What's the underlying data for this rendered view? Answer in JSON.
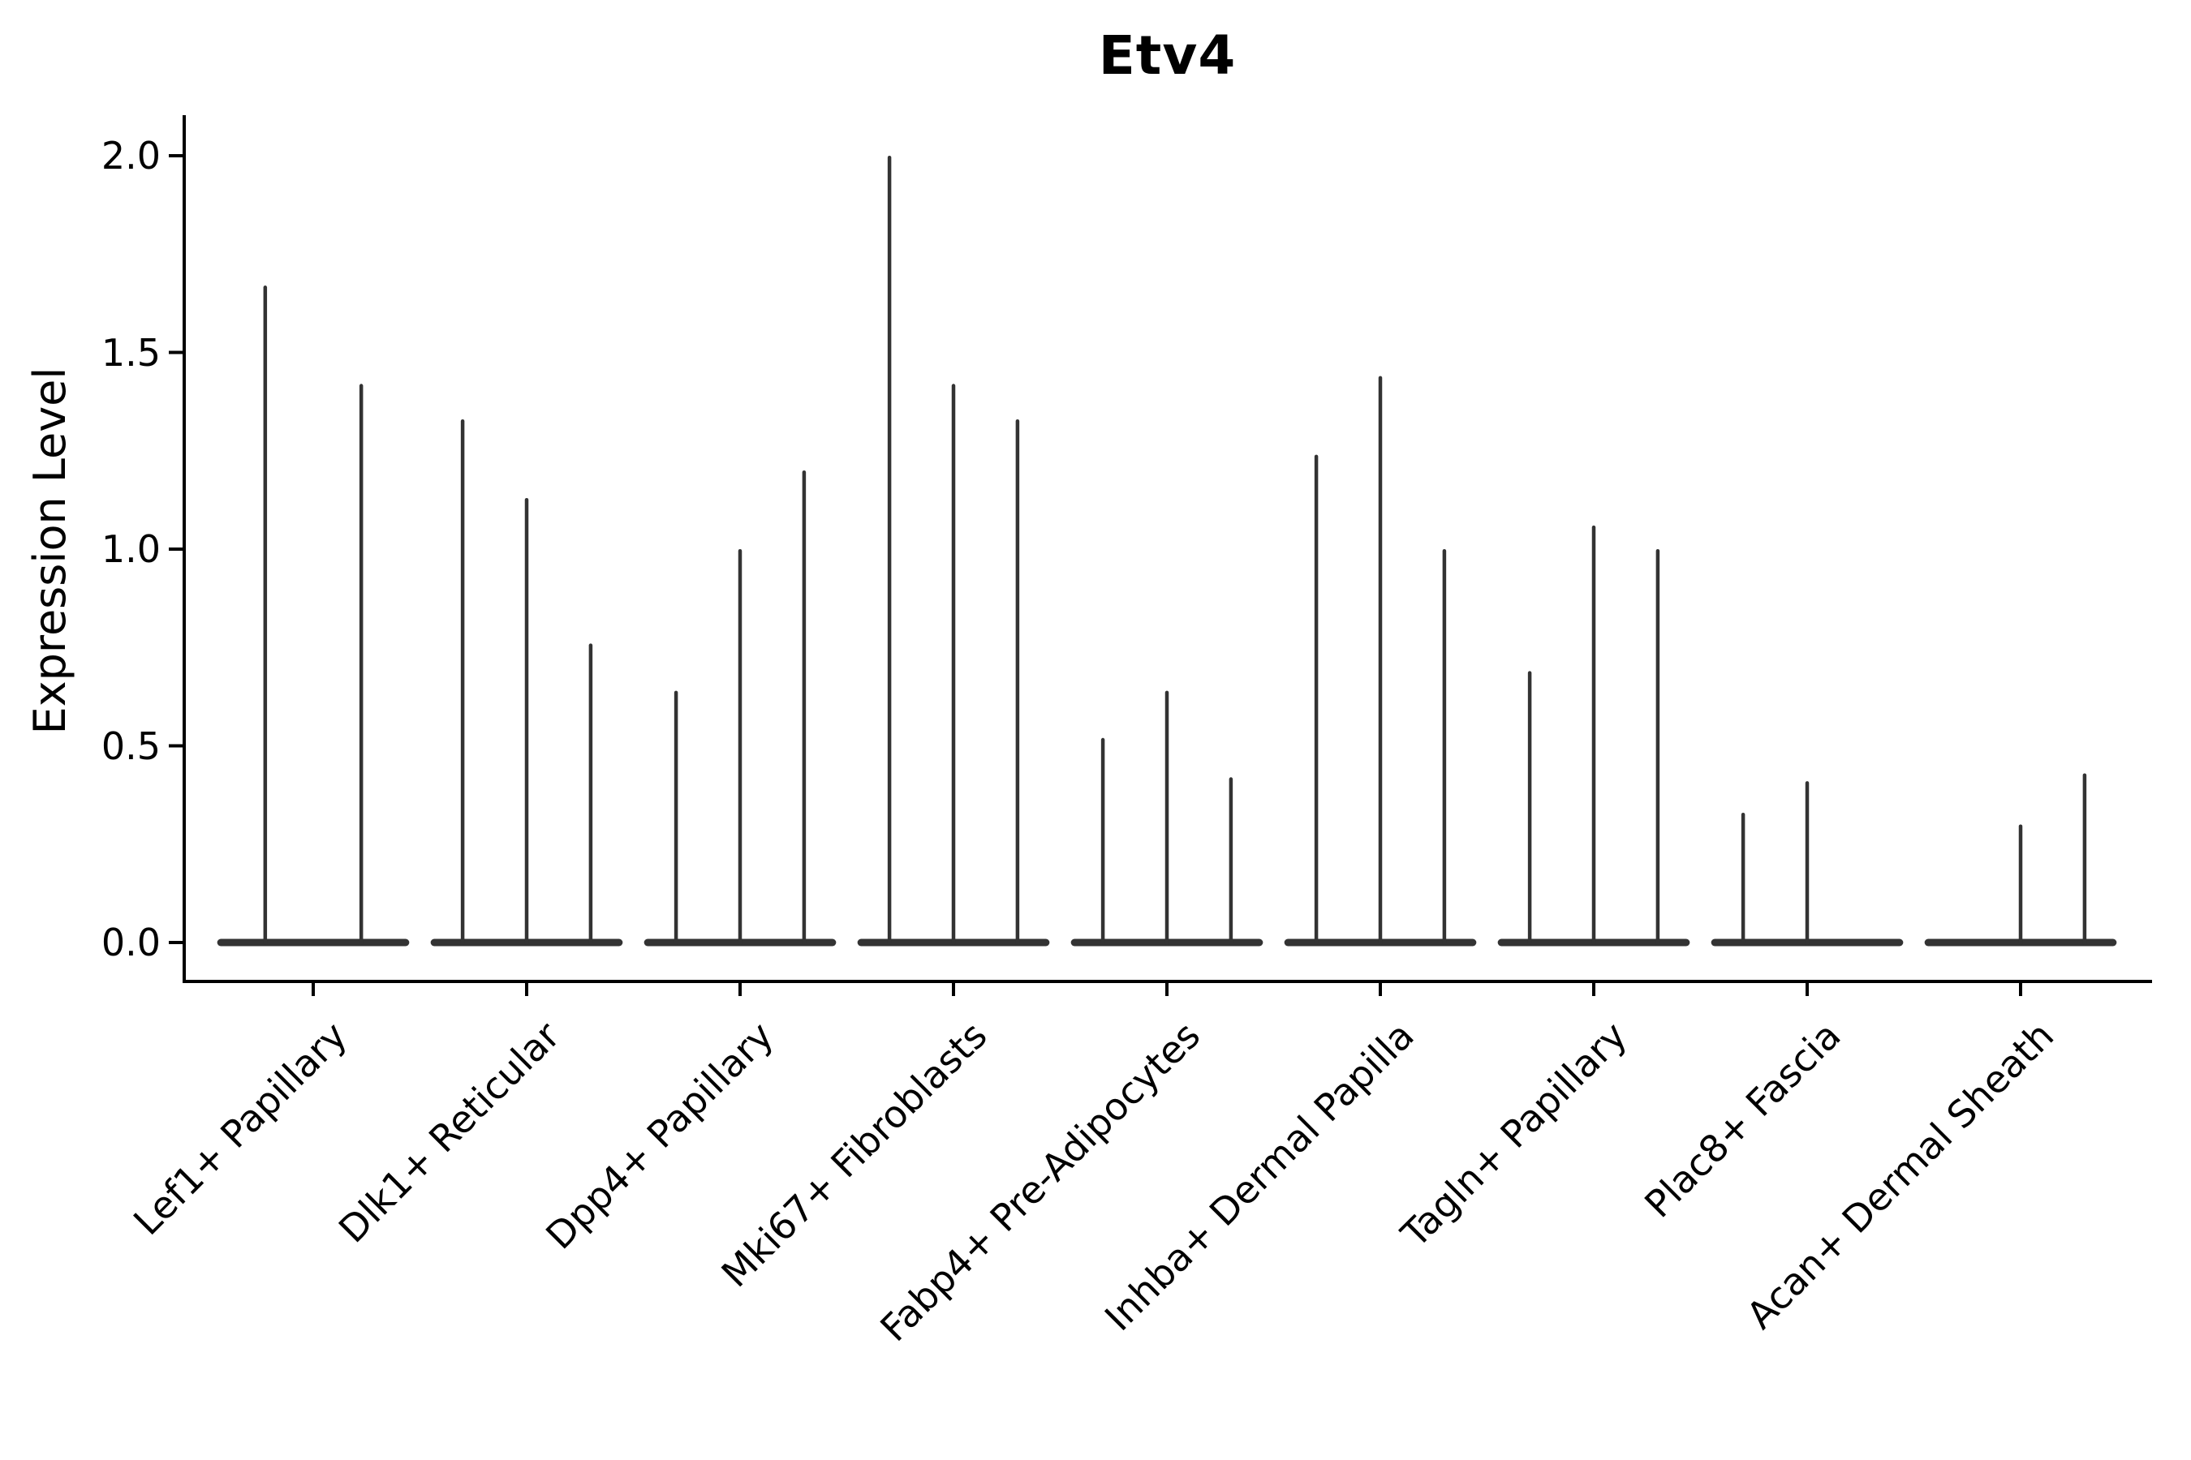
{
  "chart_data": {
    "type": "violin",
    "title": "Etv4",
    "xlabel": "",
    "ylabel": "Expression Level",
    "categories": [
      "Lef1+ Papillary",
      "Dlk1+ Reticular",
      "Dpp4+ Papillary",
      "Mki67+ Fibroblasts",
      "Fabp4+ Pre-Adipocytes",
      "Inhba+ Dermal Papilla",
      "Tagln+ Papillary",
      "Plac8+ Fascia",
      "Acan+ Dermal Sheath"
    ],
    "groups": [
      {
        "category": "Lef1+ Papillary",
        "violins": [
          1.67,
          1.42
        ]
      },
      {
        "category": "Dlk1+ Reticular",
        "violins": [
          1.33,
          1.13,
          0.76
        ]
      },
      {
        "category": "Dpp4+ Papillary",
        "violins": [
          0.64,
          1.0,
          1.2
        ]
      },
      {
        "category": "Mki67+ Fibroblasts",
        "violins": [
          2.0,
          1.42,
          1.33
        ]
      },
      {
        "category": "Fabp4+ Pre-Adipocytes",
        "violins": [
          0.52,
          0.64,
          0.42
        ]
      },
      {
        "category": "Inhba+ Dermal Papilla",
        "violins": [
          1.24,
          1.44,
          1.0
        ]
      },
      {
        "category": "Tagln+ Papillary",
        "violins": [
          0.69,
          1.06,
          1.0
        ]
      },
      {
        "category": "Plac8+ Fascia",
        "violins": [
          0.33,
          0.41,
          0.0
        ]
      },
      {
        "category": "Acan+ Dermal Sheath",
        "violins": [
          0.0,
          0.3,
          0.43
        ]
      }
    ],
    "yticks": [
      0.0,
      0.5,
      1.0,
      1.5,
      2.0
    ],
    "ytick_labels": [
      "0.0",
      "0.5",
      "1.0",
      "1.5",
      "2.0"
    ],
    "ylim": [
      -0.1,
      2.1
    ],
    "grid": false,
    "legend_position": "none",
    "x_tick_label_rotation_deg": 45,
    "colors": {
      "violin": "#333333",
      "axis": "#000000",
      "text": "#000000",
      "background": "#ffffff"
    }
  }
}
